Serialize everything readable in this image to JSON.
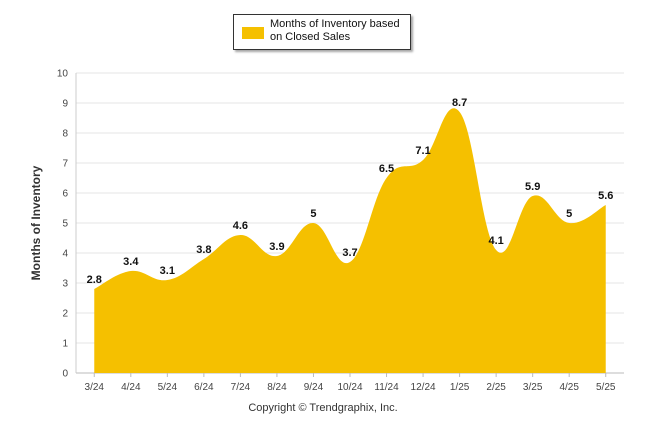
{
  "chart_data": {
    "type": "area",
    "categories": [
      "3/24",
      "4/24",
      "5/24",
      "6/24",
      "7/24",
      "8/24",
      "9/24",
      "10/24",
      "11/24",
      "12/24",
      "1/25",
      "2/25",
      "3/25",
      "4/25",
      "5/25"
    ],
    "series": [
      {
        "name": "Months of Inventory based on Closed Sales",
        "values": [
          2.8,
          3.4,
          3.1,
          3.8,
          4.6,
          3.9,
          5,
          3.7,
          6.5,
          7.1,
          8.7,
          4.1,
          5.9,
          5,
          5.6
        ]
      }
    ],
    "data_labels": [
      "2.8",
      "3.4",
      "3.1",
      "3.8",
      "4.6",
      "3.9",
      "5",
      "3.7",
      "6.5",
      "7.1",
      "8.7",
      "4.1",
      "5.9",
      "5",
      "5.6"
    ],
    "ylabel": "Months of Inventory",
    "xlabel": "",
    "ylim": [
      0,
      10
    ],
    "yticks": [
      "0",
      "1",
      "2",
      "3",
      "4",
      "5",
      "6",
      "7",
      "8",
      "9",
      "10"
    ],
    "grid": true,
    "legend_position": "top-center",
    "color": "#F5C000"
  },
  "legend": {
    "line1": "Months of Inventory based",
    "line2": "on Closed Sales"
  },
  "footer": "Copyright © Trendgraphix, Inc."
}
